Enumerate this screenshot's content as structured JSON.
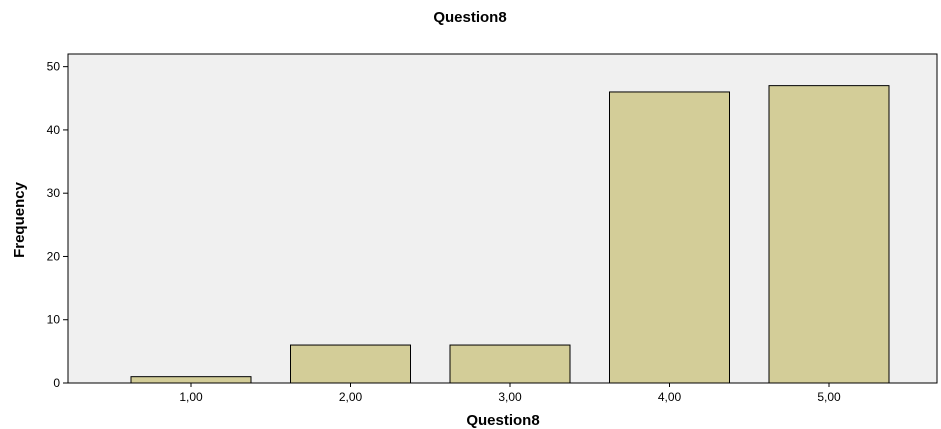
{
  "chart_data": {
    "type": "bar",
    "title": "Question8",
    "xlabel": "Question8",
    "ylabel": "Frequency",
    "categories": [
      "1,00",
      "2,00",
      "3,00",
      "4,00",
      "5,00"
    ],
    "values": [
      1,
      6,
      6,
      46,
      47
    ],
    "ylim": [
      0,
      52
    ],
    "yticks": [
      "0",
      "10",
      "20",
      "30",
      "40",
      "50"
    ],
    "grid": false,
    "legend": "none",
    "colors": {
      "bar_fill": "#d3cd98",
      "bar_stroke": "#000000",
      "plot_background": "#f0f0f0",
      "axis": "#000000"
    }
  }
}
